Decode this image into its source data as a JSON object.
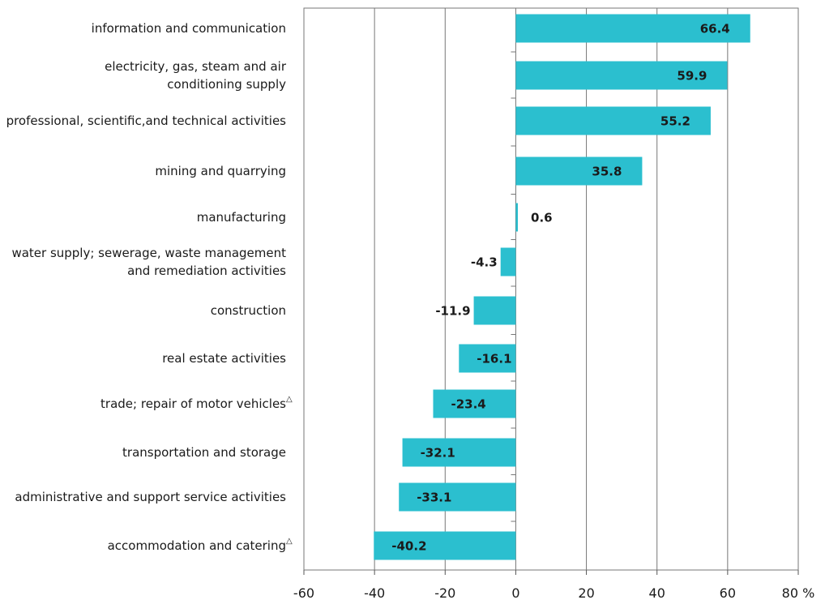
{
  "chart_data": {
    "type": "bar",
    "orientation": "horizontal",
    "categories": [
      {
        "lines": [
          "information and communication"
        ],
        "note": ""
      },
      {
        "lines": [
          "electricity, gas, steam and air",
          "conditioning supply"
        ],
        "note": ""
      },
      {
        "lines": [
          "professional, scientific,and technical activities"
        ],
        "note": ""
      },
      {
        "lines": [
          "mining and quarrying"
        ],
        "note": ""
      },
      {
        "lines": [
          "manufacturing"
        ],
        "note": ""
      },
      {
        "lines": [
          "water supply; sewerage, waste management",
          "and remediation activities"
        ],
        "note": ""
      },
      {
        "lines": [
          "construction"
        ],
        "note": ""
      },
      {
        "lines": [
          "real estate activities"
        ],
        "note": ""
      },
      {
        "lines": [
          "trade; repair of motor vehicles"
        ],
        "note": "△"
      },
      {
        "lines": [
          "transportation and storage"
        ],
        "note": ""
      },
      {
        "lines": [
          "administrative and support service activities"
        ],
        "note": ""
      },
      {
        "lines": [
          "accommodation and catering"
        ],
        "note": "△"
      }
    ],
    "values": [
      66.4,
      59.9,
      55.2,
      35.8,
      0.6,
      -4.3,
      -11.9,
      -16.1,
      -23.4,
      -32.1,
      -33.1,
      -40.2
    ],
    "value_labels": [
      "66.4",
      "59.9",
      "55.2",
      "35.8",
      "0.6",
      "-4.3",
      "-11.9",
      "-16.1",
      "-23.4",
      "-32.1",
      "-33.1",
      "-40.2"
    ],
    "xlim": [
      -60,
      80
    ],
    "x_ticks": [
      -60,
      -40,
      -20,
      0,
      20,
      40,
      60,
      80
    ],
    "x_tick_labels": [
      "-60",
      "-40",
      "-20",
      "0",
      "20",
      "40",
      "60",
      "80 %"
    ],
    "grid": true,
    "bar_color": "#2bbfcf",
    "title": "",
    "xlabel": "",
    "ylabel": ""
  }
}
